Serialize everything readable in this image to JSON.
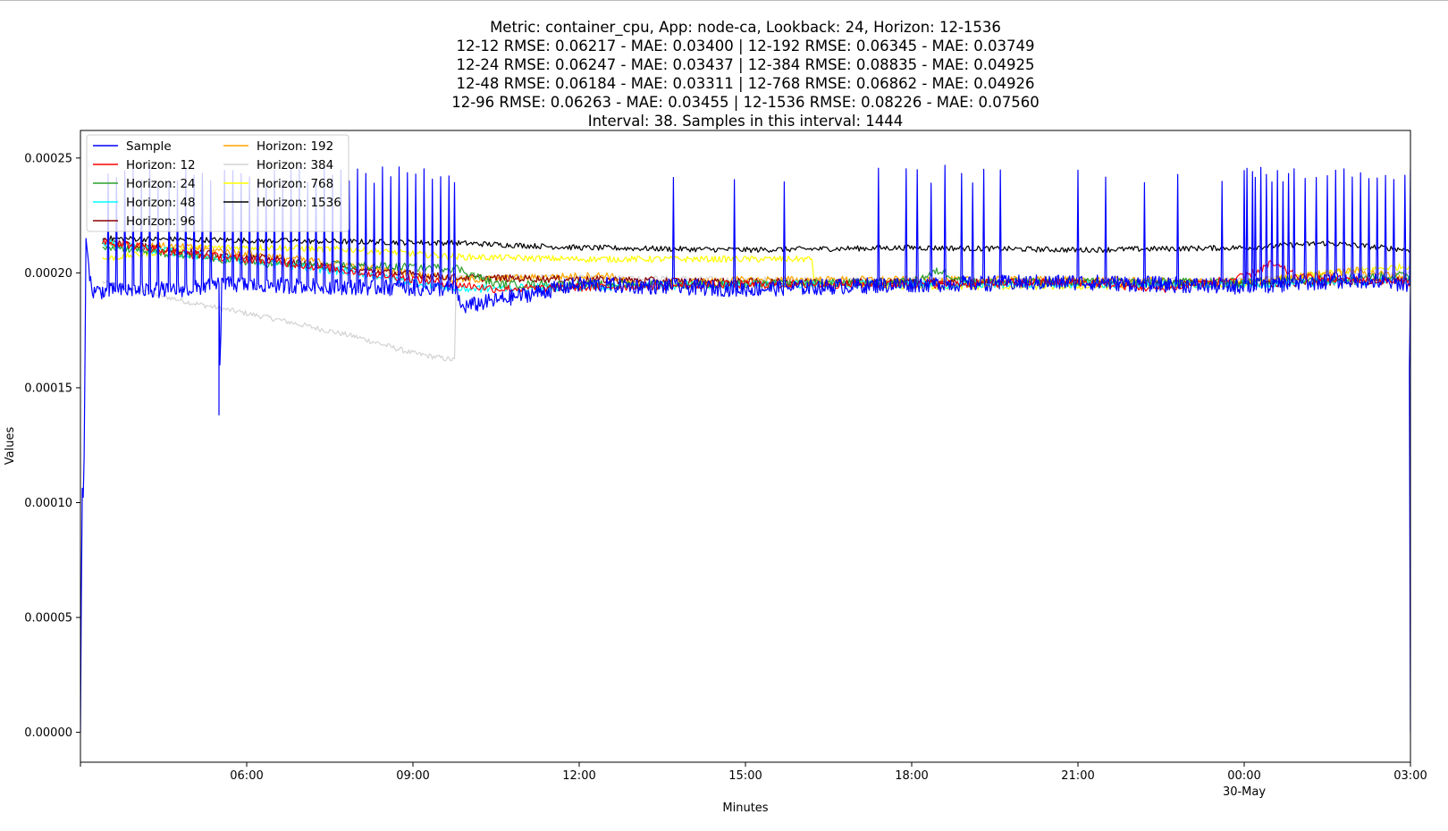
{
  "chart_data": {
    "type": "line",
    "title_lines": [
      "Metric: container_cpu, App: node-ca, Lookback: 24, Horizon: 12-1536",
      "12-12 RMSE: 0.06217 - MAE: 0.03400 | 12-192 RMSE: 0.06345 - MAE: 0.03749",
      "12-24 RMSE: 0.06247 - MAE: 0.03437 | 12-384 RMSE: 0.08835 - MAE: 0.04925",
      "12-48 RMSE: 0.06184 - MAE: 0.03311 | 12-768 RMSE: 0.06862 - MAE: 0.04926",
      "12-96 RMSE: 0.06263 - MAE: 0.03455 | 12-1536 RMSE: 0.08226 - MAE: 0.07560",
      "Interval: 38. Samples in this interval: 1444"
    ],
    "xlabel": "Minutes",
    "ylabel": "Values",
    "x_ticks": [
      {
        "x": "06:00",
        "label": "06:00",
        "sublabel": ""
      },
      {
        "x": "09:00",
        "label": "09:00",
        "sublabel": ""
      },
      {
        "x": "12:00",
        "label": "12:00",
        "sublabel": ""
      },
      {
        "x": "15:00",
        "label": "15:00",
        "sublabel": ""
      },
      {
        "x": "18:00",
        "label": "18:00",
        "sublabel": ""
      },
      {
        "x": "21:00",
        "label": "21:00",
        "sublabel": ""
      },
      {
        "x": "00:00",
        "label": "00:00",
        "sublabel": "30-May"
      },
      {
        "x": "03:00",
        "label": "03:00",
        "sublabel": ""
      }
    ],
    "xlim": [
      "03:00",
      "03:00 (30-May)"
    ],
    "y_ticks": [
      "0.00000",
      "0.00005",
      "0.00010",
      "0.00015",
      "0.00020",
      "0.00025"
    ],
    "ylim": [
      -1.3e-05,
      0.000262
    ],
    "legend_position": "upper-left",
    "grid": false,
    "series": [
      {
        "name": "Sample",
        "color": "#0000ff",
        "start_hour": 0.0,
        "points": [
          [
            0.0,
            0.0
          ],
          [
            0.03,
            0.000107
          ],
          [
            0.06,
            0.0001
          ],
          [
            0.1,
            0.000215
          ],
          [
            0.2,
            0.000192
          ],
          [
            2.0,
            0.000193
          ],
          [
            2.5,
            0.000195
          ],
          [
            2.5,
            0.000138
          ],
          [
            2.55,
            0.000195
          ],
          [
            6.8,
            0.000193
          ],
          [
            6.85,
            0.000185
          ],
          [
            9.0,
            0.000195
          ],
          [
            12.0,
            0.000193
          ],
          [
            15.0,
            0.000195
          ],
          [
            18.0,
            0.000196
          ],
          [
            21.0,
            0.000194
          ],
          [
            23.0,
            0.000197
          ],
          [
            24.0,
            0.000195
          ],
          [
            24.0,
            0.000158
          ],
          [
            24.05,
            0.000168
          ],
          [
            24.1,
            0.0
          ]
        ],
        "spikes": [
          0.5,
          0.65,
          0.8,
          0.95,
          1.1,
          1.25,
          1.4,
          1.6,
          1.75,
          1.9,
          2.05,
          2.2,
          2.35,
          2.6,
          2.75,
          2.9,
          3.05,
          3.2,
          3.35,
          3.5,
          3.65,
          3.8,
          3.95,
          4.1,
          4.25,
          4.4,
          4.55,
          4.7,
          4.85,
          5.0,
          5.15,
          5.3,
          5.45,
          5.6,
          5.75,
          5.9,
          6.05,
          6.2,
          6.35,
          6.5,
          6.65,
          6.75,
          10.7,
          11.8,
          12.7,
          14.4,
          14.9,
          15.1,
          15.35,
          15.6,
          15.9,
          16.1,
          16.3,
          16.6,
          18.0,
          18.5,
          19.2,
          19.8,
          20.6,
          21.0,
          21.05,
          21.15,
          21.2,
          21.3,
          21.4,
          21.5,
          21.6,
          21.7,
          21.8,
          21.9,
          22.1,
          22.3,
          22.5,
          22.65,
          22.8,
          22.95,
          23.1,
          23.25,
          23.4,
          23.55,
          23.7,
          23.9,
          24.0
        ],
        "spike_peak": 0.000247
      },
      {
        "name": "Horizon: 12",
        "color": "#ff0000",
        "start_hour": 0.4,
        "points": [
          [
            0.4,
            0.000214
          ],
          [
            2.0,
            0.000208
          ],
          [
            3.5,
            0.000205
          ],
          [
            6.8,
            0.000195
          ],
          [
            7.5,
            0.000193
          ],
          [
            12.0,
            0.000195
          ],
          [
            15.0,
            0.000195
          ],
          [
            18.0,
            0.000196
          ],
          [
            19.5,
            0.000193
          ],
          [
            21.0,
            0.000198
          ],
          [
            21.5,
            0.000204
          ],
          [
            22.0,
            0.000198
          ],
          [
            24.0,
            0.000196
          ]
        ]
      },
      {
        "name": "Horizon: 24",
        "color": "#2ca02c",
        "start_hour": 0.4,
        "points": [
          [
            0.4,
            0.000212
          ],
          [
            2.0,
            0.000207
          ],
          [
            3.5,
            0.000204
          ],
          [
            6.8,
            0.000202
          ],
          [
            7.5,
            0.000195
          ],
          [
            12.0,
            0.000195
          ],
          [
            15.0,
            0.000196
          ],
          [
            15.5,
            0.000201
          ],
          [
            16.0,
            0.000196
          ],
          [
            18.0,
            0.000196
          ],
          [
            21.0,
            0.000196
          ],
          [
            24.0,
            0.000199
          ]
        ]
      },
      {
        "name": "Horizon: 48",
        "color": "#00ffff",
        "start_hour": 0.4,
        "points": [
          [
            0.4,
            0.000213
          ],
          [
            2.0,
            0.000208
          ],
          [
            3.5,
            0.000204
          ],
          [
            5.0,
            0.0002
          ],
          [
            6.8,
            0.000193
          ],
          [
            12.0,
            0.000195
          ],
          [
            15.0,
            0.000195
          ],
          [
            18.0,
            0.000195
          ],
          [
            21.0,
            0.000195
          ],
          [
            24.0,
            0.000197
          ]
        ]
      },
      {
        "name": "Horizon: 96",
        "color": "#8b0000",
        "start_hour": 0.4,
        "points": [
          [
            0.4,
            0.000214
          ],
          [
            2.0,
            0.000209
          ],
          [
            3.5,
            0.000206
          ],
          [
            4.5,
            0.000202
          ],
          [
            6.8,
            0.000198
          ],
          [
            12.0,
            0.000196
          ],
          [
            15.0,
            0.000196
          ],
          [
            18.0,
            0.000196
          ],
          [
            21.0,
            0.000195
          ],
          [
            24.0,
            0.000197
          ]
        ]
      },
      {
        "name": "Horizon: 192",
        "color": "#ffa500",
        "start_hour": 0.4,
        "points": [
          [
            0.4,
            0.000213
          ],
          [
            2.0,
            0.000211
          ],
          [
            3.5,
            0.000207
          ],
          [
            5.0,
            0.000203
          ],
          [
            6.8,
            0.000197
          ],
          [
            9.5,
            0.000199
          ],
          [
            10.0,
            0.000195
          ],
          [
            12.0,
            0.000197
          ],
          [
            15.0,
            0.000197
          ],
          [
            18.0,
            0.000197
          ],
          [
            21.0,
            0.000196
          ],
          [
            23.0,
            0.000201
          ],
          [
            24.0,
            0.000198
          ]
        ]
      },
      {
        "name": "Horizon: 384",
        "color": "#d3d3d3",
        "start_hour": 0.4,
        "points": [
          [
            0.4,
            0.000196
          ],
          [
            2.0,
            0.000187
          ],
          [
            3.5,
            0.00018
          ],
          [
            5.0,
            0.000172
          ],
          [
            6.0,
            0.000165
          ],
          [
            6.75,
            0.000162
          ],
          [
            6.78,
            0.000198
          ],
          [
            9.5,
            0.000198
          ],
          [
            12.0,
            0.000197
          ],
          [
            15.0,
            0.000197
          ],
          [
            18.0,
            0.000197
          ],
          [
            21.0,
            0.000197
          ],
          [
            24.0,
            0.0002
          ]
        ]
      },
      {
        "name": "Horizon: 768",
        "color": "#ffff00",
        "start_hour": 0.4,
        "points": [
          [
            0.4,
            0.000206
          ],
          [
            2.0,
            0.000211
          ],
          [
            3.5,
            0.000211
          ],
          [
            5.0,
            0.00021
          ],
          [
            6.8,
            0.000207
          ],
          [
            9.0,
            0.000206
          ],
          [
            13.2,
            0.000206
          ],
          [
            13.25,
            0.000195
          ],
          [
            15.0,
            0.000194
          ],
          [
            18.0,
            0.000194
          ],
          [
            21.0,
            0.000195
          ],
          [
            22.5,
            0.0002
          ],
          [
            24.0,
            0.000203
          ]
        ]
      },
      {
        "name": "Horizon: 1536",
        "color": "#000000",
        "start_hour": 0.4,
        "points": [
          [
            0.4,
            0.000215
          ],
          [
            3.5,
            0.000214
          ],
          [
            6.8,
            0.000213
          ],
          [
            9.0,
            0.000211
          ],
          [
            12.0,
            0.00021
          ],
          [
            15.0,
            0.000211
          ],
          [
            18.0,
            0.00021
          ],
          [
            21.0,
            0.000211
          ],
          [
            22.5,
            0.000213
          ],
          [
            24.0,
            0.00021
          ]
        ]
      }
    ]
  }
}
